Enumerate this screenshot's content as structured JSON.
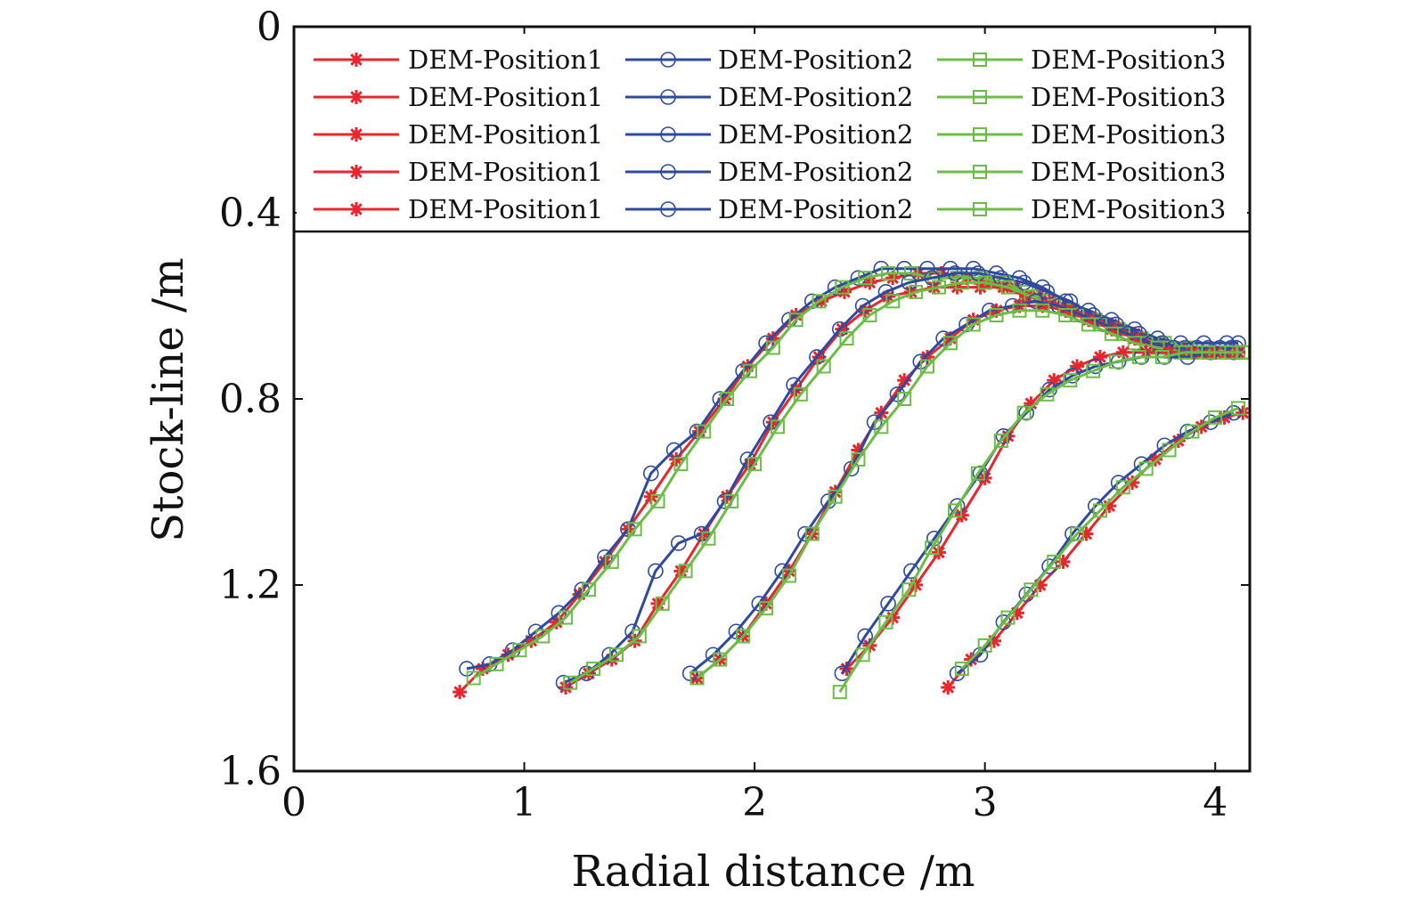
{
  "chart_data": {
    "type": "line",
    "xlabel": "Radial distance /m",
    "ylabel": "Stock-line /m",
    "xlim": [
      0,
      4.15
    ],
    "ylim": [
      1.6,
      0
    ],
    "y_inverted": true,
    "xticks": [
      "0",
      "1",
      "2",
      "3",
      "4"
    ],
    "yticks": [
      "0",
      "0.4",
      "0.8",
      "1.2",
      "1.6"
    ],
    "grid": false,
    "legend_position": "top (inside, 3 columns x 5 rows)",
    "legend": [
      "DEM-Position1",
      "DEM-Position2",
      "DEM-Position3",
      "DEM-Position1",
      "DEM-Position2",
      "DEM-Position3",
      "DEM-Position1",
      "DEM-Position2",
      "DEM-Position3",
      "DEM-Position1",
      "DEM-Position2",
      "DEM-Position3",
      "DEM-Position1",
      "DEM-Position2",
      "DEM-Position3"
    ],
    "series": [
      {
        "name": "DEM-Position1",
        "color": "#e8262d",
        "marker": "asterisk",
        "x": [
          0.72,
          0.82,
          0.93,
          1.03,
          1.14,
          1.24,
          1.35,
          1.45,
          1.55,
          1.66,
          1.76,
          1.87,
          1.97,
          2.08,
          2.18,
          2.29,
          2.39,
          2.5,
          2.6,
          2.71,
          2.81,
          2.92,
          3.02,
          3.13,
          3.23,
          3.34,
          3.44,
          3.55,
          3.65,
          3.76,
          3.86,
          3.97,
          4.07
        ],
        "y": [
          1.43,
          1.38,
          1.35,
          1.32,
          1.28,
          1.22,
          1.15,
          1.08,
          1.01,
          0.93,
          0.87,
          0.8,
          0.73,
          0.67,
          0.62,
          0.59,
          0.57,
          0.55,
          0.54,
          0.53,
          0.53,
          0.54,
          0.55,
          0.56,
          0.58,
          0.6,
          0.62,
          0.64,
          0.66,
          0.68,
          0.69,
          0.7,
          0.7
        ]
      },
      {
        "name": "DEM-Position2",
        "color": "#2e4aa0",
        "marker": "circle",
        "x": [
          0.75,
          0.85,
          0.95,
          1.05,
          1.15,
          1.25,
          1.35,
          1.45,
          1.55,
          1.65,
          1.75,
          1.85,
          1.95,
          2.05,
          2.15,
          2.25,
          2.35,
          2.45,
          2.55,
          2.65,
          2.75,
          2.85,
          2.95,
          3.05,
          3.15,
          3.25,
          3.35,
          3.45,
          3.55,
          3.65,
          3.75,
          3.85,
          3.95,
          4.05,
          4.1
        ],
        "y": [
          1.38,
          1.37,
          1.34,
          1.3,
          1.26,
          1.21,
          1.14,
          1.08,
          0.96,
          0.91,
          0.87,
          0.8,
          0.74,
          0.68,
          0.63,
          0.59,
          0.56,
          0.54,
          0.52,
          0.52,
          0.52,
          0.52,
          0.52,
          0.53,
          0.54,
          0.56,
          0.59,
          0.61,
          0.63,
          0.65,
          0.67,
          0.68,
          0.68,
          0.68,
          0.68
        ]
      },
      {
        "name": "DEM-Position3",
        "color": "#6bbd45",
        "marker": "square",
        "x": [
          0.78,
          0.88,
          0.98,
          1.08,
          1.18,
          1.28,
          1.38,
          1.48,
          1.58,
          1.68,
          1.78,
          1.88,
          1.98,
          2.08,
          2.18,
          2.28,
          2.38,
          2.48,
          2.58,
          2.68,
          2.78,
          2.88,
          2.98,
          3.08,
          3.18,
          3.28,
          3.38,
          3.48,
          3.58,
          3.68,
          3.78,
          3.88,
          3.98,
          4.08,
          4.12
        ],
        "y": [
          1.4,
          1.37,
          1.34,
          1.31,
          1.27,
          1.21,
          1.15,
          1.08,
          1.02,
          0.94,
          0.87,
          0.8,
          0.74,
          0.69,
          0.63,
          0.59,
          0.56,
          0.54,
          0.53,
          0.53,
          0.54,
          0.54,
          0.54,
          0.55,
          0.57,
          0.59,
          0.61,
          0.63,
          0.65,
          0.67,
          0.68,
          0.69,
          0.7,
          0.7,
          0.7
        ]
      },
      {
        "name": "DEM-Position1",
        "color": "#e8262d",
        "marker": "asterisk",
        "x": [
          1.18,
          1.28,
          1.38,
          1.48,
          1.58,
          1.68,
          1.78,
          1.88,
          1.98,
          2.08,
          2.18,
          2.28,
          2.38,
          2.48,
          2.58,
          2.68,
          2.78,
          2.88,
          2.98,
          3.08,
          3.18,
          3.28,
          3.38,
          3.48,
          3.58,
          3.68,
          3.78,
          3.88,
          3.98,
          4.08
        ],
        "y": [
          1.42,
          1.39,
          1.36,
          1.32,
          1.24,
          1.17,
          1.09,
          1.01,
          0.94,
          0.85,
          0.78,
          0.71,
          0.65,
          0.61,
          0.58,
          0.57,
          0.56,
          0.56,
          0.56,
          0.56,
          0.58,
          0.59,
          0.61,
          0.63,
          0.65,
          0.67,
          0.69,
          0.7,
          0.7,
          0.7
        ]
      },
      {
        "name": "DEM-Position2",
        "color": "#2e4aa0",
        "marker": "circle",
        "x": [
          1.17,
          1.27,
          1.37,
          1.47,
          1.57,
          1.67,
          1.77,
          1.87,
          1.97,
          2.07,
          2.17,
          2.27,
          2.37,
          2.47,
          2.57,
          2.67,
          2.77,
          2.87,
          2.97,
          3.07,
          3.17,
          3.27,
          3.37,
          3.47,
          3.57,
          3.67,
          3.77,
          3.87,
          3.97,
          4.07
        ],
        "y": [
          1.41,
          1.39,
          1.35,
          1.3,
          1.17,
          1.11,
          1.09,
          1.02,
          0.93,
          0.85,
          0.77,
          0.71,
          0.65,
          0.6,
          0.57,
          0.55,
          0.54,
          0.53,
          0.53,
          0.54,
          0.55,
          0.57,
          0.59,
          0.62,
          0.64,
          0.66,
          0.68,
          0.69,
          0.69,
          0.69
        ]
      },
      {
        "name": "DEM-Position3",
        "color": "#6bbd45",
        "marker": "square",
        "x": [
          1.2,
          1.3,
          1.4,
          1.5,
          1.6,
          1.7,
          1.8,
          1.9,
          2.0,
          2.1,
          2.2,
          2.3,
          2.4,
          2.5,
          2.6,
          2.7,
          2.8,
          2.9,
          3.0,
          3.1,
          3.2,
          3.3,
          3.4,
          3.5,
          3.6,
          3.7,
          3.8,
          3.9,
          4.0,
          4.1
        ],
        "y": [
          1.41,
          1.38,
          1.35,
          1.31,
          1.24,
          1.17,
          1.1,
          1.02,
          0.94,
          0.86,
          0.79,
          0.73,
          0.67,
          0.62,
          0.59,
          0.57,
          0.56,
          0.55,
          0.55,
          0.56,
          0.58,
          0.6,
          0.62,
          0.64,
          0.66,
          0.68,
          0.69,
          0.7,
          0.7,
          0.7
        ]
      },
      {
        "name": "DEM-Position1",
        "color": "#e8262d",
        "marker": "asterisk",
        "x": [
          1.75,
          1.85,
          1.95,
          2.05,
          2.15,
          2.25,
          2.35,
          2.45,
          2.55,
          2.65,
          2.75,
          2.85,
          2.95,
          3.05,
          3.15,
          3.25,
          3.35,
          3.45,
          3.55,
          3.65,
          3.75,
          3.85,
          3.95,
          4.05,
          4.1
        ],
        "y": [
          1.4,
          1.36,
          1.31,
          1.24,
          1.17,
          1.09,
          1.0,
          0.91,
          0.83,
          0.76,
          0.71,
          0.67,
          0.63,
          0.61,
          0.6,
          0.6,
          0.61,
          0.63,
          0.65,
          0.67,
          0.69,
          0.7,
          0.7,
          0.7,
          0.7
        ]
      },
      {
        "name": "DEM-Position2",
        "color": "#2e4aa0",
        "marker": "circle",
        "x": [
          1.72,
          1.82,
          1.92,
          2.02,
          2.12,
          2.22,
          2.32,
          2.42,
          2.52,
          2.62,
          2.72,
          2.82,
          2.92,
          3.02,
          3.12,
          3.22,
          3.32,
          3.42,
          3.52,
          3.62,
          3.72,
          3.82,
          3.92,
          4.02,
          4.09
        ],
        "y": [
          1.39,
          1.35,
          1.3,
          1.24,
          1.17,
          1.09,
          1.02,
          0.95,
          0.85,
          0.79,
          0.72,
          0.67,
          0.64,
          0.61,
          0.6,
          0.59,
          0.6,
          0.62,
          0.64,
          0.66,
          0.68,
          0.69,
          0.69,
          0.69,
          0.69
        ]
      },
      {
        "name": "DEM-Position3",
        "color": "#6bbd45",
        "marker": "square",
        "x": [
          1.75,
          1.85,
          1.95,
          2.05,
          2.15,
          2.25,
          2.35,
          2.45,
          2.55,
          2.65,
          2.75,
          2.85,
          2.95,
          3.05,
          3.15,
          3.25,
          3.35,
          3.45,
          3.55,
          3.65,
          3.75,
          3.85,
          3.95,
          4.05,
          4.12
        ],
        "y": [
          1.4,
          1.36,
          1.31,
          1.25,
          1.18,
          1.09,
          1.01,
          0.93,
          0.86,
          0.8,
          0.73,
          0.68,
          0.64,
          0.62,
          0.61,
          0.61,
          0.62,
          0.64,
          0.66,
          0.68,
          0.69,
          0.7,
          0.7,
          0.7,
          0.7
        ]
      },
      {
        "name": "DEM-Position1",
        "color": "#e8262d",
        "marker": "asterisk",
        "x": [
          2.4,
          2.5,
          2.6,
          2.7,
          2.8,
          2.9,
          3.0,
          3.1,
          3.2,
          3.3,
          3.4,
          3.5,
          3.6,
          3.7,
          3.8,
          3.9,
          4.0,
          4.1
        ],
        "y": [
          1.38,
          1.33,
          1.27,
          1.2,
          1.13,
          1.05,
          0.97,
          0.88,
          0.81,
          0.76,
          0.73,
          0.71,
          0.7,
          0.7,
          0.7,
          0.7,
          0.7,
          0.7
        ]
      },
      {
        "name": "DEM-Position2",
        "color": "#2e4aa0",
        "marker": "circle",
        "x": [
          2.38,
          2.48,
          2.58,
          2.68,
          2.78,
          2.88,
          2.98,
          3.08,
          3.18,
          3.28,
          3.38,
          3.48,
          3.58,
          3.68,
          3.78,
          3.88,
          3.98,
          4.08
        ],
        "y": [
          1.39,
          1.31,
          1.24,
          1.17,
          1.1,
          1.03,
          0.96,
          0.88,
          0.83,
          0.78,
          0.75,
          0.73,
          0.72,
          0.71,
          0.71,
          0.71,
          0.7,
          0.7
        ]
      },
      {
        "name": "DEM-Position3",
        "color": "#6bbd45",
        "marker": "square",
        "x": [
          2.37,
          2.47,
          2.57,
          2.67,
          2.77,
          2.87,
          2.97,
          3.07,
          3.17,
          3.27,
          3.37,
          3.47,
          3.57,
          3.67,
          3.77,
          3.87,
          3.97,
          4.07,
          4.12
        ],
        "y": [
          1.43,
          1.35,
          1.28,
          1.21,
          1.12,
          1.04,
          0.96,
          0.89,
          0.83,
          0.79,
          0.76,
          0.74,
          0.72,
          0.71,
          0.71,
          0.7,
          0.7,
          0.7,
          0.7
        ]
      },
      {
        "name": "DEM-Position1",
        "color": "#e8262d",
        "marker": "asterisk",
        "x": [
          2.84,
          2.94,
          3.04,
          3.14,
          3.24,
          3.34,
          3.44,
          3.54,
          3.64,
          3.74,
          3.84,
          3.94,
          4.04,
          4.12
        ],
        "y": [
          1.42,
          1.36,
          1.32,
          1.26,
          1.2,
          1.15,
          1.09,
          1.03,
          0.98,
          0.93,
          0.89,
          0.86,
          0.84,
          0.83
        ]
      },
      {
        "name": "DEM-Position2",
        "color": "#2e4aa0",
        "marker": "circle",
        "x": [
          2.88,
          2.98,
          3.08,
          3.18,
          3.28,
          3.38,
          3.48,
          3.58,
          3.68,
          3.78,
          3.88,
          3.98,
          4.08
        ],
        "y": [
          1.39,
          1.35,
          1.28,
          1.22,
          1.16,
          1.09,
          1.03,
          0.98,
          0.94,
          0.9,
          0.87,
          0.85,
          0.83
        ]
      },
      {
        "name": "DEM-Position3",
        "color": "#6bbd45",
        "marker": "square",
        "x": [
          2.9,
          3.0,
          3.1,
          3.2,
          3.3,
          3.4,
          3.5,
          3.6,
          3.7,
          3.8,
          3.9,
          4.0,
          4.1
        ],
        "y": [
          1.38,
          1.33,
          1.27,
          1.21,
          1.15,
          1.09,
          1.04,
          0.99,
          0.95,
          0.91,
          0.87,
          0.84,
          0.82
        ]
      }
    ]
  }
}
